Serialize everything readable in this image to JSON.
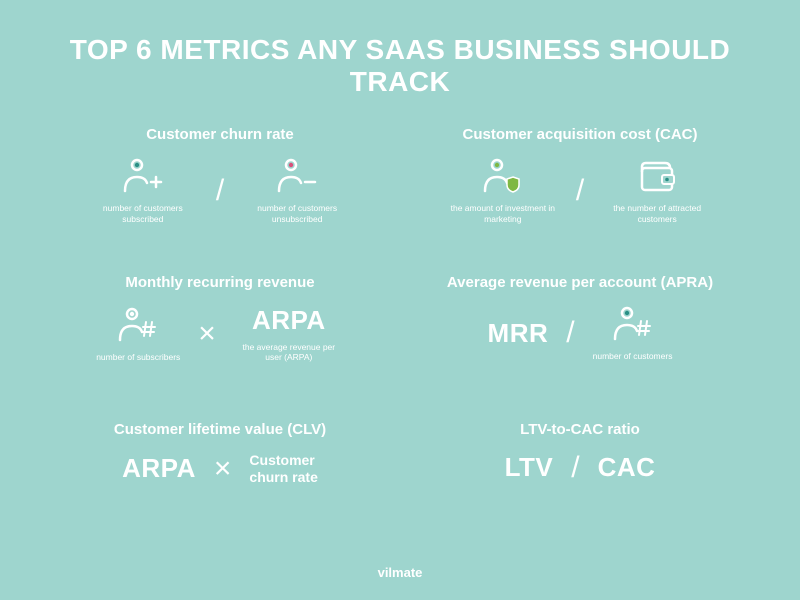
{
  "type": "infographic",
  "background_color": "#9ed5ce",
  "text_color": "#ffffff",
  "title_fontsize": 28,
  "card_title_fontsize": 15,
  "caption_fontsize": 8.5,
  "big_text_fontsize": 26,
  "operator_fontsize": 30,
  "title": "TOP 6 METRICS ANY SAAS BUSINESS SHOULD TRACK",
  "footer": "vilmate",
  "icon_colors": {
    "teal": "#2a8f85",
    "green": "#7fb843",
    "pink": "#d94f7a",
    "white": "#ffffff"
  },
  "metrics": [
    {
      "title": "Customer churn rate",
      "operator": "/",
      "left": {
        "icon": "person-plus",
        "caption": "number of customers subscribed"
      },
      "right": {
        "icon": "person-minus",
        "caption": "number of customers unsubscribed"
      }
    },
    {
      "title": "Customer acquisition cost (CAC)",
      "operator": "/",
      "left": {
        "icon": "person-shield",
        "caption": "the amount of investment in marketing"
      },
      "right": {
        "icon": "wallet",
        "caption": "the number of attracted customers"
      }
    },
    {
      "title": "Monthly recurring revenue",
      "operator": "×",
      "left": {
        "icon": "person-hash",
        "caption": "number of subscribers"
      },
      "right": {
        "big": "ARPA",
        "caption": "the average revenue per user (ARPA)"
      }
    },
    {
      "title": "Average revenue per account (APRA)",
      "operator": "/",
      "left": {
        "big": "MRR"
      },
      "right": {
        "icon": "person-hash-teal",
        "caption": "number of customers"
      }
    },
    {
      "title": "Customer lifetime value (CLV)",
      "operator": "×",
      "left": {
        "big": "ARPA"
      },
      "right": {
        "med": "Customer\nchurn rate"
      }
    },
    {
      "title": "LTV-to-CAC ratio",
      "operator": "/",
      "left": {
        "big": "LTV"
      },
      "right": {
        "big": "CAC"
      }
    }
  ]
}
